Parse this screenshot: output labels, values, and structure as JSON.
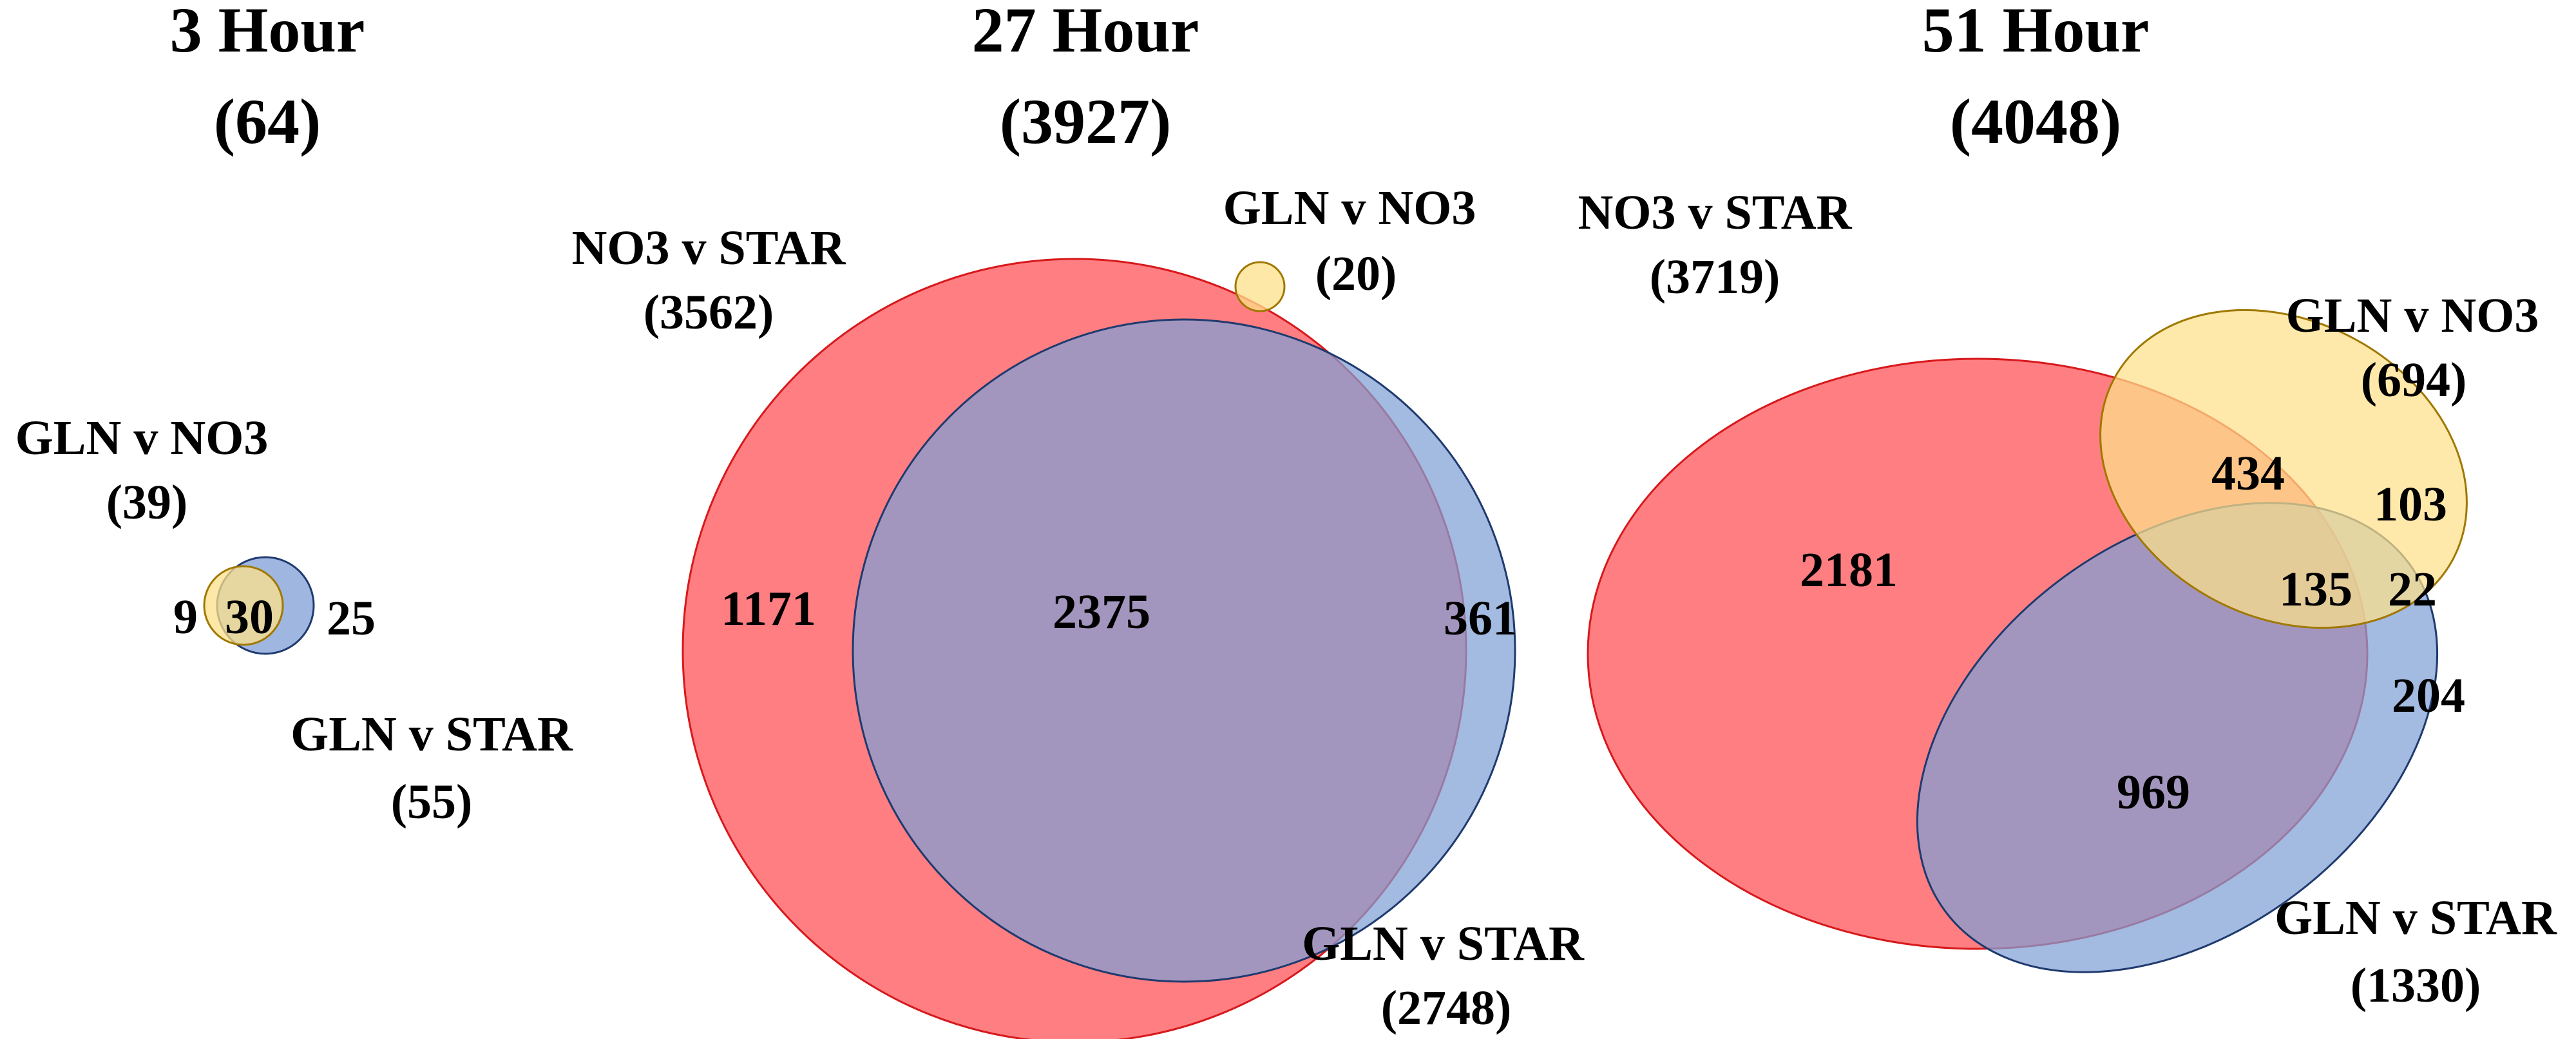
{
  "colors": {
    "no3_v_star": "#ff5a5f",
    "gln_v_star": "#7f9fd6",
    "gln_v_no3": "#fde08a",
    "no3_v_star_stroke": "#d7191c",
    "gln_v_star_stroke": "#1f3a6e",
    "gln_v_no3_stroke": "#a07800"
  },
  "panels": {
    "h3": {
      "title": "3 Hour",
      "total": "(64)",
      "sets": {
        "gln_v_no3": {
          "name": "GLN v NO3",
          "count": "(39)"
        },
        "gln_v_star": {
          "name": "GLN v STAR",
          "count": "(55)"
        }
      },
      "regions": {
        "gln_v_no3_only": "9",
        "gln_no3_and_gln_star": "30",
        "gln_v_star_only": "25"
      }
    },
    "h27": {
      "title": "27 Hour",
      "total": "(3927)",
      "sets": {
        "no3_v_star": {
          "name": "NO3 v STAR",
          "count": "(3562)"
        },
        "gln_v_no3": {
          "name": "GLN v NO3",
          "count": "(20)"
        },
        "gln_v_star": {
          "name": "GLN v STAR",
          "count": "(2748)"
        }
      },
      "regions": {
        "no3_v_star_only": "1171",
        "no3_star_and_gln_star": "2375",
        "gln_v_star_only": "361"
      }
    },
    "h51": {
      "title": "51 Hour",
      "total": "(4048)",
      "sets": {
        "no3_v_star": {
          "name": "NO3 v STAR",
          "count": "(3719)"
        },
        "gln_v_no3": {
          "name": "GLN v NO3",
          "count": "(694)"
        },
        "gln_v_star": {
          "name": "GLN v STAR",
          "count": "(1330)"
        }
      },
      "regions": {
        "no3_v_star_only": "2181",
        "no3_star_and_gln_no3": "434",
        "gln_v_no3_only": "103",
        "all_three": "135",
        "gln_no3_and_gln_star": "22",
        "gln_v_star_only": "204",
        "no3_star_and_gln_star": "969"
      }
    }
  }
}
